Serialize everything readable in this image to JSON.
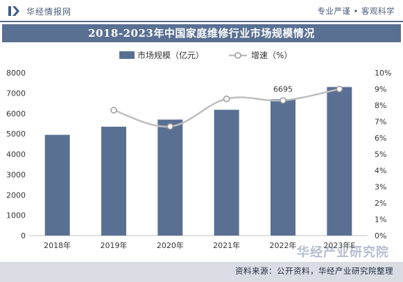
{
  "header": {
    "site_name": "华经情报网",
    "slogan": "专业严谨 • 客观科学"
  },
  "title": "2018-2023年中国家庭维修行业市场规模情况",
  "footer": {
    "source": "资料来源：公开资料，华经产业研究院整理"
  },
  "watermark": "华经产业研究院",
  "colors": {
    "bar": "#5a7093",
    "line": "#bdbdbd",
    "marker_fill": "#ffffff",
    "marker_stroke": "#9a9a9a",
    "title_bg": "#5a7093",
    "footer_bg": "#d9dde3"
  },
  "chart_data": {
    "type": "bar",
    "categories": [
      "2018年",
      "2019年",
      "2020年",
      "2021年",
      "2022年",
      "2023年E"
    ],
    "series": [
      {
        "name": "市场规模（亿元）",
        "type": "bar",
        "axis": "left",
        "values": [
          4950,
          5350,
          5700,
          6180,
          6695,
          7300
        ]
      },
      {
        "name": "增速（%）",
        "type": "line",
        "axis": "right",
        "values": [
          null,
          7.7,
          6.7,
          8.4,
          8.3,
          9.0
        ]
      }
    ],
    "y_left": {
      "min": 0,
      "max": 8000,
      "ticks": [
        0,
        1000,
        2000,
        3000,
        4000,
        5000,
        6000,
        7000,
        8000
      ]
    },
    "y_right": {
      "min": 0,
      "max": 10,
      "ticks": [
        "0%",
        "1%",
        "2%",
        "3%",
        "4%",
        "5%",
        "6%",
        "7%",
        "8%",
        "9%",
        "10%"
      ]
    },
    "data_labels": [
      {
        "category": "2022年",
        "series": "市场规模（亿元）",
        "text": "6695"
      }
    ],
    "legend_position": "top-center",
    "grid": false
  }
}
